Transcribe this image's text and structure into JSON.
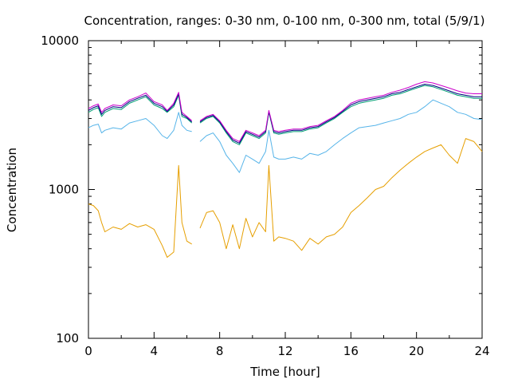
{
  "chart_data": {
    "type": "line",
    "title": "Concentration, ranges: 0-30 nm, 0-100 nm, 0-300 nm, total (5/9/1)",
    "xlabel": "Time [hour]",
    "ylabel": "Concentration",
    "xlim": [
      0,
      24
    ],
    "ylim": [
      100,
      10000
    ],
    "yscale": "log",
    "grid": false,
    "legend": "none",
    "x_ticks": [
      "0",
      "4",
      "8",
      "12",
      "16",
      "20",
      "24"
    ],
    "y_ticks": [
      "100",
      "1000",
      "10000"
    ],
    "series": [
      {
        "color": "#e69f00",
        "x": [
          0,
          0.3,
          0.6,
          0.8,
          1.0,
          1.5,
          2.0,
          2.5,
          3.0,
          3.5,
          4.0,
          4.5,
          4.8,
          5.2,
          5.5,
          5.7,
          6.0,
          6.3,
          6.6,
          6.8,
          7.2,
          7.6,
          8.0,
          8.4,
          8.8,
          9.2,
          9.6,
          10.0,
          10.4,
          10.8,
          11.0,
          11.3,
          11.6,
          12.0,
          12.5,
          13.0,
          13.5,
          14.0,
          14.5,
          15.0,
          15.5,
          16.0,
          16.5,
          17.0,
          17.5,
          18.0,
          18.5,
          19.0,
          19.5,
          20.0,
          20.5,
          21.0,
          21.5,
          22.0,
          22.5,
          23.0,
          23.5,
          24.0
        ],
        "y": [
          800,
          780,
          720,
          600,
          520,
          560,
          540,
          590,
          560,
          580,
          540,
          420,
          350,
          380,
          1450,
          600,
          450,
          430,
          null,
          550,
          700,
          720,
          600,
          400,
          580,
          400,
          640,
          480,
          600,
          520,
          1450,
          450,
          480,
          470,
          450,
          390,
          470,
          430,
          480,
          500,
          560,
          700,
          780,
          880,
          1000,
          1050,
          1200,
          1350,
          1500,
          1650,
          1800,
          1900,
          2000,
          1700,
          1500,
          2200,
          2100,
          1800
        ]
      },
      {
        "color": "#56b4e9",
        "x": [
          0,
          0.3,
          0.6,
          0.8,
          1.0,
          1.5,
          2.0,
          2.5,
          3.0,
          3.5,
          4.0,
          4.5,
          4.8,
          5.2,
          5.5,
          5.7,
          6.0,
          6.3,
          6.6,
          6.8,
          7.2,
          7.6,
          8.0,
          8.4,
          8.8,
          9.2,
          9.6,
          10.0,
          10.4,
          10.8,
          11.0,
          11.3,
          11.6,
          12.0,
          12.5,
          13.0,
          13.5,
          14.0,
          14.5,
          15.0,
          15.5,
          16.0,
          16.5,
          17.0,
          17.5,
          18.0,
          18.5,
          19.0,
          19.5,
          20.0,
          20.5,
          21.0,
          21.5,
          22.0,
          22.5,
          23.0,
          23.5,
          24.0
        ],
        "y": [
          2600,
          2700,
          2750,
          2400,
          2500,
          2600,
          2550,
          2800,
          2900,
          3000,
          2700,
          2300,
          2200,
          2500,
          3300,
          2700,
          2500,
          2450,
          null,
          2100,
          2300,
          2400,
          2100,
          1700,
          1500,
          1300,
          1700,
          1600,
          1500,
          1800,
          2500,
          1650,
          1600,
          1600,
          1650,
          1600,
          1750,
          1700,
          1800,
          2000,
          2200,
          2400,
          2600,
          2650,
          2700,
          2800,
          2900,
          3000,
          3200,
          3300,
          3600,
          4000,
          3800,
          3600,
          3300,
          3200,
          3000,
          2950
        ]
      },
      {
        "color": "#009e73",
        "x": [
          0,
          0.3,
          0.6,
          0.8,
          1.0,
          1.5,
          2.0,
          2.5,
          3.0,
          3.5,
          4.0,
          4.5,
          4.8,
          5.2,
          5.5,
          5.7,
          6.0,
          6.3,
          6.6,
          6.8,
          7.2,
          7.6,
          8.0,
          8.4,
          8.8,
          9.2,
          9.6,
          10.0,
          10.4,
          10.8,
          11.0,
          11.3,
          11.6,
          12.0,
          12.5,
          13.0,
          13.5,
          14.0,
          14.5,
          15.0,
          15.5,
          16.0,
          16.5,
          17.0,
          17.5,
          18.0,
          18.5,
          19.0,
          19.5,
          20.0,
          20.5,
          21.0,
          21.5,
          22.0,
          22.5,
          23.0,
          23.5,
          24.0
        ],
        "y": [
          3300,
          3450,
          3550,
          3100,
          3300,
          3500,
          3450,
          3800,
          4000,
          4200,
          3700,
          3500,
          3300,
          3600,
          4300,
          3100,
          3000,
          2800,
          null,
          2800,
          3000,
          3100,
          2800,
          2400,
          2100,
          2000,
          2400,
          2300,
          2200,
          2400,
          3300,
          2400,
          2350,
          2400,
          2450,
          2450,
          2550,
          2600,
          2800,
          3000,
          3300,
          3600,
          3800,
          3900,
          4000,
          4100,
          4300,
          4400,
          4600,
          4800,
          5000,
          4900,
          4700,
          4500,
          4300,
          4200,
          4100,
          4100
        ]
      },
      {
        "color": "#000080",
        "x": [
          0,
          0.3,
          0.6,
          0.8,
          1.0,
          1.5,
          2.0,
          2.5,
          3.0,
          3.5,
          4.0,
          4.5,
          4.8,
          5.2,
          5.5,
          5.7,
          6.0,
          6.3,
          6.6,
          6.8,
          7.2,
          7.6,
          8.0,
          8.4,
          8.8,
          9.2,
          9.6,
          10.0,
          10.4,
          10.8,
          11.0,
          11.3,
          11.6,
          12.0,
          12.5,
          13.0,
          13.5,
          14.0,
          14.5,
          15.0,
          15.5,
          16.0,
          16.5,
          17.0,
          17.5,
          18.0,
          18.5,
          19.0,
          19.5,
          20.0,
          20.5,
          21.0,
          21.5,
          22.0,
          22.5,
          23.0,
          23.5,
          24.0
        ],
        "y": [
          3400,
          3550,
          3650,
          3200,
          3400,
          3600,
          3550,
          3900,
          4100,
          4300,
          3800,
          3600,
          3350,
          3700,
          4400,
          3200,
          3050,
          2850,
          null,
          2850,
          3050,
          3150,
          2850,
          2450,
          2150,
          2050,
          2450,
          2350,
          2250,
          2450,
          3350,
          2450,
          2400,
          2450,
          2500,
          2500,
          2600,
          2650,
          2850,
          3050,
          3350,
          3700,
          3900,
          4000,
          4100,
          4200,
          4400,
          4500,
          4700,
          4900,
          5100,
          5000,
          4800,
          4600,
          4400,
          4300,
          4200,
          4200
        ]
      },
      {
        "color": "#cc00cc",
        "x": [
          0,
          0.3,
          0.6,
          0.8,
          1.0,
          1.5,
          2.0,
          2.5,
          3.0,
          3.5,
          4.0,
          4.5,
          4.8,
          5.2,
          5.5,
          5.7,
          6.0,
          6.3,
          6.6,
          6.8,
          7.2,
          7.6,
          8.0,
          8.4,
          8.8,
          9.2,
          9.6,
          10.0,
          10.4,
          10.8,
          11.0,
          11.3,
          11.6,
          12.0,
          12.5,
          13.0,
          13.5,
          14.0,
          14.5,
          15.0,
          15.5,
          16.0,
          16.5,
          17.0,
          17.5,
          18.0,
          18.5,
          19.0,
          19.5,
          20.0,
          20.5,
          21.0,
          21.5,
          22.0,
          22.5,
          23.0,
          23.5,
          24.0
        ],
        "y": [
          3500,
          3650,
          3750,
          3300,
          3500,
          3700,
          3650,
          4000,
          4200,
          4450,
          3900,
          3700,
          3400,
          3800,
          4500,
          3300,
          3100,
          2900,
          null,
          2900,
          3100,
          3200,
          2900,
          2500,
          2200,
          2100,
          2500,
          2400,
          2300,
          2500,
          3400,
          2500,
          2450,
          2500,
          2550,
          2550,
          2650,
          2700,
          2900,
          3100,
          3400,
          3800,
          4000,
          4100,
          4200,
          4300,
          4500,
          4650,
          4850,
          5100,
          5300,
          5200,
          5000,
          4800,
          4600,
          4450,
          4400,
          4400
        ]
      }
    ]
  }
}
